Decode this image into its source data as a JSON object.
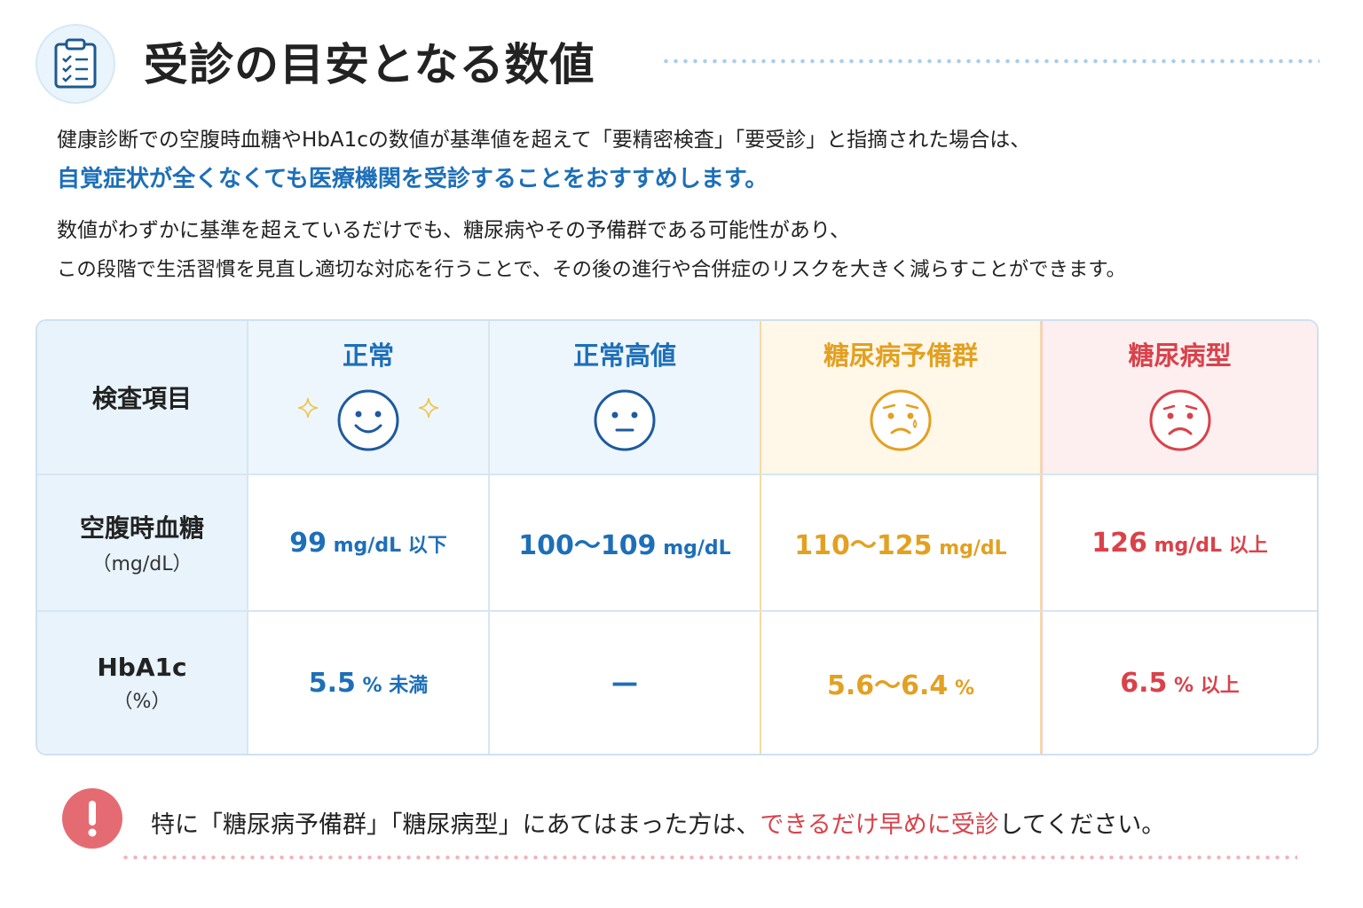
{
  "header": {
    "title": "受診の目安となる数値",
    "icon": "clipboard-checklist-icon"
  },
  "intro": {
    "line1": "健康診断での空腹時血糖やHbA1cの数値が基準値を超えて「要精密検査」「要受診」と指摘された場合は、",
    "line2": "自覚症状が全くなくても医療機関を受診することをおすすめします。",
    "line3": "数値がわずかに基準を超えているだけでも、糖尿病やその予備群である可能性があり、",
    "line4": "この段階で生活習慣を見直し適切な対応を行うことで、その後の進行や合併症のリスクを大きく減らすことができます。"
  },
  "table": {
    "header_label": "検査項目",
    "columns": [
      {
        "name": "正常",
        "face": "smiling-face-icon",
        "color": "#1d6fb8"
      },
      {
        "name": "正常高値",
        "face": "neutral-face-icon",
        "color": "#1d6fb8"
      },
      {
        "name": "糖尿病予備群",
        "face": "worried-face-icon",
        "color": "#e3a021"
      },
      {
        "name": "糖尿病型",
        "face": "sad-face-icon",
        "color": "#d9424a"
      }
    ],
    "rows": [
      {
        "label": "空腹時血糖",
        "unit": "（mg/dL）",
        "values": [
          {
            "num": "99",
            "suffix": " mg/dL 以下"
          },
          {
            "num": "100〜109",
            "suffix": " mg/dL"
          },
          {
            "num": "110〜125",
            "suffix": " mg/dL"
          },
          {
            "num": "126",
            "suffix": " mg/dL 以上"
          }
        ]
      },
      {
        "label": "HbA1c",
        "unit": "（%）",
        "values": [
          {
            "num": "5.5",
            "suffix": " % 未満"
          },
          {
            "num": "—",
            "suffix": ""
          },
          {
            "num": "5.6〜6.4",
            "suffix": " %"
          },
          {
            "num": "6.5",
            "suffix": " % 以上"
          }
        ]
      }
    ]
  },
  "alert": {
    "icon": "exclamation-icon",
    "text_before": "特に「糖尿病予備群」「糖尿病型」にあてはまった方は、",
    "text_emphasis": "できるだけ早めに受診",
    "text_after": "してください。",
    "accent_color": "#d9424a"
  }
}
